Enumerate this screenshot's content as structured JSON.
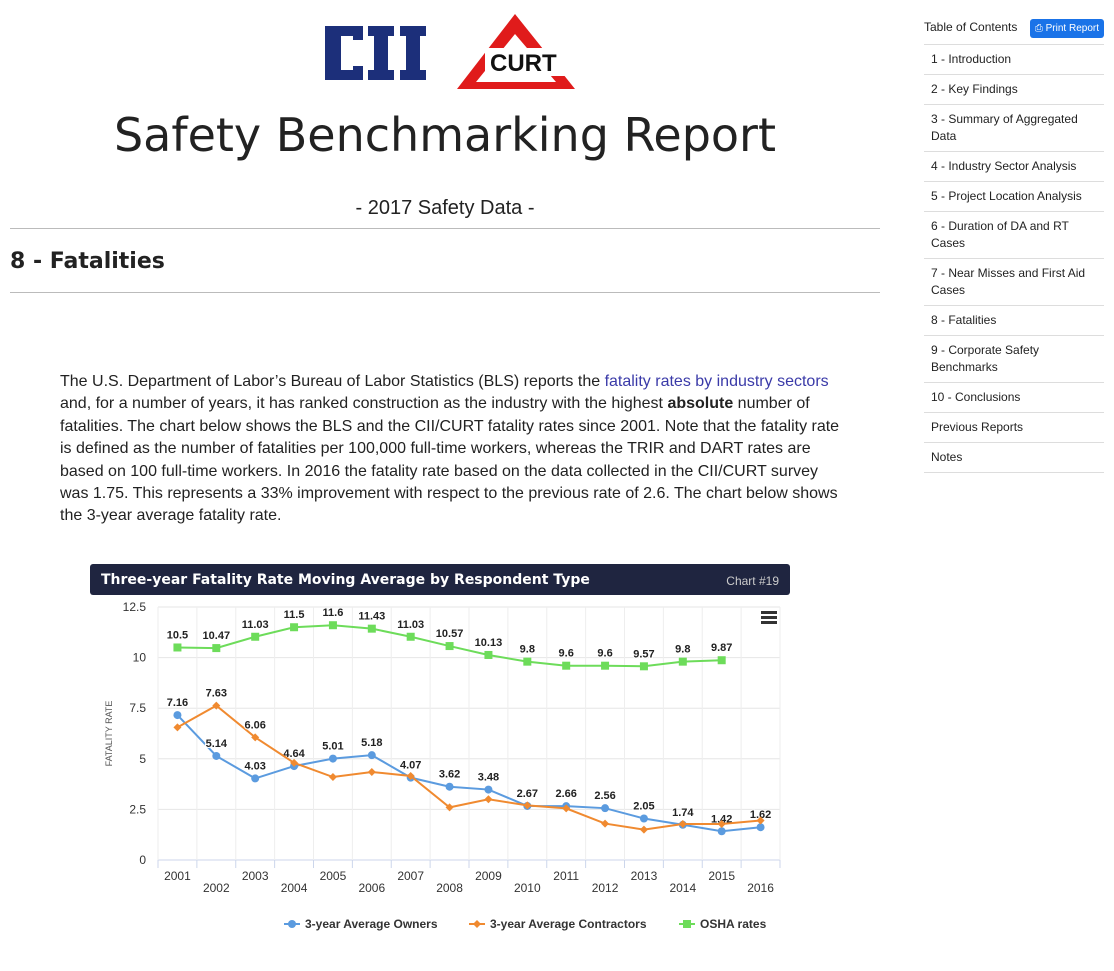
{
  "logos": {
    "cii": "CII",
    "curt": "CURT"
  },
  "header": {
    "title": "Safety Benchmarking Report",
    "subtitle": "- 2017 Safety Data -"
  },
  "section": {
    "title": "8 - Fatalities"
  },
  "paragraph": {
    "p1": "The U.S. Department of Labor’s Bureau of Labor Statistics (BLS) reports the ",
    "link": "fatality rates by industry sectors",
    "p2": " and, for a number of years, it has ranked construction as the industry with the highest ",
    "bold": "absolute",
    "p3": " number of fatalities. The chart below shows the BLS and the CII/CURT fatality rates since 2001. Note that the fatality rate is defined as the number of fatalities per 100,000 full-time workers, whereas the TRIR and DART rates are based on 100 full-time workers. In 2016 the fatality rate based on the data collected in the CII/CURT survey was 1.75. This represents a 33% improvement with respect to the previous rate of 2.6. The chart below shows the 3-year average fatality rate."
  },
  "toc": {
    "heading": "Table of Contents",
    "print": "Print Report",
    "items": [
      "1 - Introduction",
      "2 - Key Findings",
      "3 - Summary of Aggregated Data",
      "4 - Industry Sector Analysis",
      "5 - Project Location Analysis",
      "6 - Duration of DA and RT Cases",
      "7 - Near Misses and First Aid Cases",
      "8 - Fatalities",
      "9 - Corporate Safety Benchmarks",
      "10 - Conclusions",
      "Previous Reports",
      "Notes"
    ]
  },
  "chart_data": {
    "type": "line",
    "title": "Three-year Fatality Rate Moving Average by Respondent Type",
    "chart_number": "Chart #19",
    "ylabel": "FATALITY RATE",
    "ylim": [
      0,
      12.5
    ],
    "yticks": [
      "0",
      "2.5",
      "5",
      "7.5",
      "10",
      "12.5"
    ],
    "categories": [
      "2001",
      "2002",
      "2003",
      "2004",
      "2005",
      "2006",
      "2007",
      "2008",
      "2009",
      "2010",
      "2011",
      "2012",
      "2013",
      "2014",
      "2015",
      "2016"
    ],
    "series": [
      {
        "name": "3-year Average Owners",
        "color": "#5b9bdf",
        "marker": "circle",
        "labeled": true,
        "values": [
          7.16,
          5.14,
          4.03,
          4.64,
          5.01,
          5.18,
          4.07,
          3.62,
          3.48,
          2.67,
          2.66,
          2.56,
          2.05,
          1.74,
          1.42,
          1.62
        ]
      },
      {
        "name": "3-year Average Contractors",
        "color": "#f08a30",
        "marker": "diamond",
        "labeled": false,
        "values": [
          6.55,
          7.63,
          6.06,
          4.8,
          4.1,
          4.35,
          4.15,
          2.6,
          3.0,
          2.7,
          2.55,
          1.8,
          1.5,
          1.78,
          1.78,
          1.95
        ]
      },
      {
        "name": "OSHA rates",
        "color": "#6ddc5a",
        "marker": "square",
        "labeled": true,
        "values": [
          10.5,
          10.47,
          11.03,
          11.5,
          11.6,
          11.43,
          11.03,
          10.57,
          10.13,
          9.8,
          9.6,
          9.6,
          9.57,
          9.8,
          9.87,
          null
        ]
      }
    ],
    "extra_labels": {
      "contractors_2002": "7.63",
      "contractors_2003": "6.06"
    },
    "legend": "bottom-center",
    "grid": true
  }
}
